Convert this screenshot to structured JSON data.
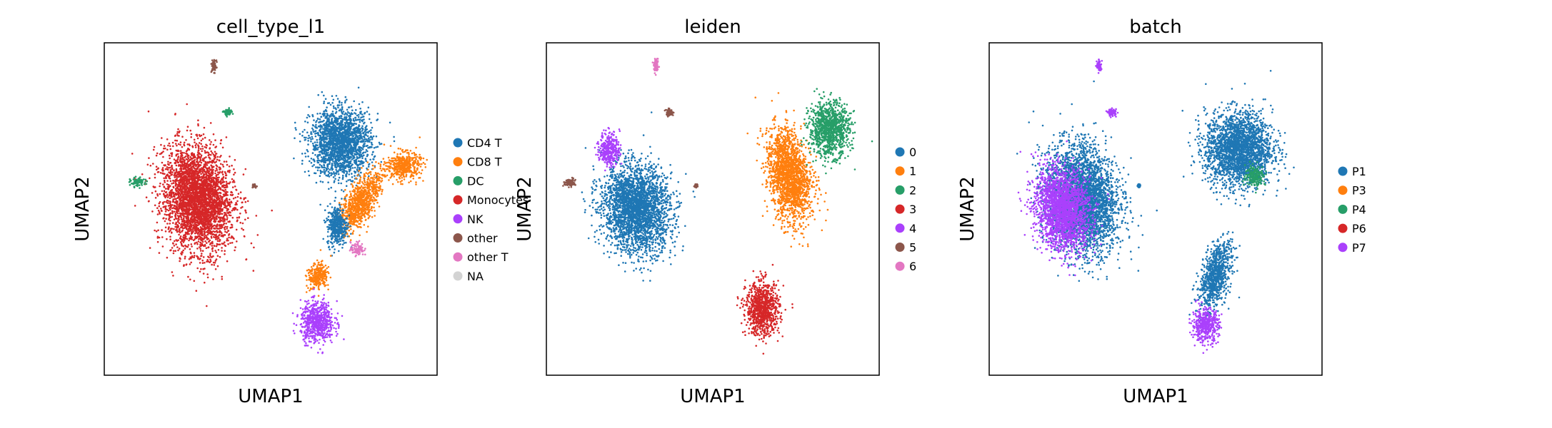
{
  "chart_data": [
    {
      "type": "scatter",
      "title": "cell_type_l1",
      "xlabel": "UMAP1",
      "ylabel": "UMAP2",
      "xlim": [
        0,
        100
      ],
      "ylim": [
        0,
        100
      ],
      "grid": false,
      "ticks": false,
      "legend_placement": "right",
      "legend": [
        {
          "name": "CD4 T",
          "color": "#1f77b4"
        },
        {
          "name": "CD8 T",
          "color": "#ff7f0e"
        },
        {
          "name": "DC",
          "color": "#279e68"
        },
        {
          "name": "Monocytes",
          "color": "#d62728"
        },
        {
          "name": "NK",
          "color": "#aa40fc"
        },
        {
          "name": "other",
          "color": "#8c564b"
        },
        {
          "name": "other T",
          "color": "#e377c2"
        },
        {
          "name": "NA",
          "color": "#d3d3d3"
        }
      ],
      "clusters": [
        {
          "cat": 3,
          "x": 28,
          "y": 53,
          "sx": 10,
          "sy": 16,
          "rot": 10
        },
        {
          "cat": 2,
          "x": 10,
          "y": 58,
          "sx": 2.2,
          "sy": 1.4,
          "rot": 0
        },
        {
          "cat": 0,
          "x": 71,
          "y": 70,
          "sx": 9,
          "sy": 10,
          "rot": 0
        },
        {
          "cat": 1,
          "x": 90,
          "y": 63,
          "sx": 5,
          "sy": 4,
          "rot": 0
        },
        {
          "cat": 1,
          "x": 77,
          "y": 52,
          "sx": 4,
          "sy": 10,
          "rot": -30
        },
        {
          "cat": 0,
          "x": 70,
          "y": 45,
          "sx": 3,
          "sy": 6,
          "rot": 0
        },
        {
          "cat": 1,
          "x": 64,
          "y": 30,
          "sx": 3,
          "sy": 4,
          "rot": -30
        },
        {
          "cat": 6,
          "x": 76,
          "y": 38,
          "sx": 2,
          "sy": 2,
          "rot": 0
        },
        {
          "cat": 4,
          "x": 64,
          "y": 16,
          "sx": 5,
          "sy": 6,
          "rot": 0
        },
        {
          "cat": 5,
          "x": 33,
          "y": 93,
          "sx": 0.7,
          "sy": 1.8,
          "rot": 0
        },
        {
          "cat": 2,
          "x": 37,
          "y": 79,
          "sx": 1.2,
          "sy": 1,
          "rot": 0
        },
        {
          "cat": 5,
          "x": 45,
          "y": 57,
          "sx": 0.4,
          "sy": 0.4,
          "rot": 0
        }
      ]
    },
    {
      "type": "scatter",
      "title": "leiden",
      "xlabel": "UMAP1",
      "ylabel": "UMAP2",
      "xlim": [
        0,
        100
      ],
      "ylim": [
        0,
        100
      ],
      "grid": false,
      "ticks": false,
      "legend_placement": "right",
      "legend": [
        {
          "name": "0",
          "color": "#1f77b4"
        },
        {
          "name": "1",
          "color": "#ff7f0e"
        },
        {
          "name": "2",
          "color": "#279e68"
        },
        {
          "name": "3",
          "color": "#d62728"
        },
        {
          "name": "4",
          "color": "#aa40fc"
        },
        {
          "name": "5",
          "color": "#8c564b"
        },
        {
          "name": "6",
          "color": "#e377c2"
        }
      ],
      "clusters": [
        {
          "cat": 0,
          "x": 27,
          "y": 50,
          "sx": 10,
          "sy": 13,
          "rot": 10
        },
        {
          "cat": 4,
          "x": 19,
          "y": 68,
          "sx": 3,
          "sy": 5,
          "rot": 0
        },
        {
          "cat": 5,
          "x": 7,
          "y": 58,
          "sx": 1.8,
          "sy": 1.2,
          "rot": 0
        },
        {
          "cat": 1,
          "x": 73,
          "y": 60,
          "sx": 6,
          "sy": 14,
          "rot": 10
        },
        {
          "cat": 2,
          "x": 85,
          "y": 74,
          "sx": 6,
          "sy": 8,
          "rot": 0
        },
        {
          "cat": 3,
          "x": 65,
          "y": 20,
          "sx": 5,
          "sy": 8,
          "rot": 0
        },
        {
          "cat": 6,
          "x": 33,
          "y": 93,
          "sx": 0.7,
          "sy": 1.8,
          "rot": 0
        },
        {
          "cat": 5,
          "x": 37,
          "y": 79,
          "sx": 1.2,
          "sy": 1,
          "rot": 0
        },
        {
          "cat": 5,
          "x": 45,
          "y": 57,
          "sx": 0.4,
          "sy": 0.4,
          "rot": 0
        }
      ]
    },
    {
      "type": "scatter",
      "title": "batch",
      "xlabel": "UMAP1",
      "ylabel": "UMAP2",
      "xlim": [
        0,
        100
      ],
      "ylim": [
        0,
        100
      ],
      "grid": false,
      "ticks": false,
      "legend_placement": "right",
      "legend": [
        {
          "name": "P1",
          "color": "#1f77b4"
        },
        {
          "name": "P3",
          "color": "#ff7f0e"
        },
        {
          "name": "P4",
          "color": "#279e68"
        },
        {
          "name": "P6",
          "color": "#d62728"
        },
        {
          "name": "P7",
          "color": "#aa40fc"
        }
      ],
      "clusters": [
        {
          "cat": 0,
          "x": 28,
          "y": 53,
          "sx": 10,
          "sy": 16,
          "rot": 10
        },
        {
          "cat": 4,
          "x": 22,
          "y": 50,
          "sx": 8,
          "sy": 12,
          "rot": 10
        },
        {
          "cat": 0,
          "x": 75,
          "y": 68,
          "sx": 10,
          "sy": 11,
          "rot": 0
        },
        {
          "cat": 0,
          "x": 68,
          "y": 30,
          "sx": 4,
          "sy": 10,
          "rot": -15
        },
        {
          "cat": 4,
          "x": 65,
          "y": 15,
          "sx": 4,
          "sy": 5,
          "rot": 0
        },
        {
          "cat": 2,
          "x": 80,
          "y": 60,
          "sx": 3,
          "sy": 3,
          "rot": 0
        },
        {
          "cat": 4,
          "x": 33,
          "y": 93,
          "sx": 0.7,
          "sy": 1.8,
          "rot": 0
        },
        {
          "cat": 4,
          "x": 37,
          "y": 79,
          "sx": 1.2,
          "sy": 1,
          "rot": 0
        },
        {
          "cat": 0,
          "x": 45,
          "y": 57,
          "sx": 0.4,
          "sy": 0.4,
          "rot": 0
        }
      ]
    }
  ]
}
